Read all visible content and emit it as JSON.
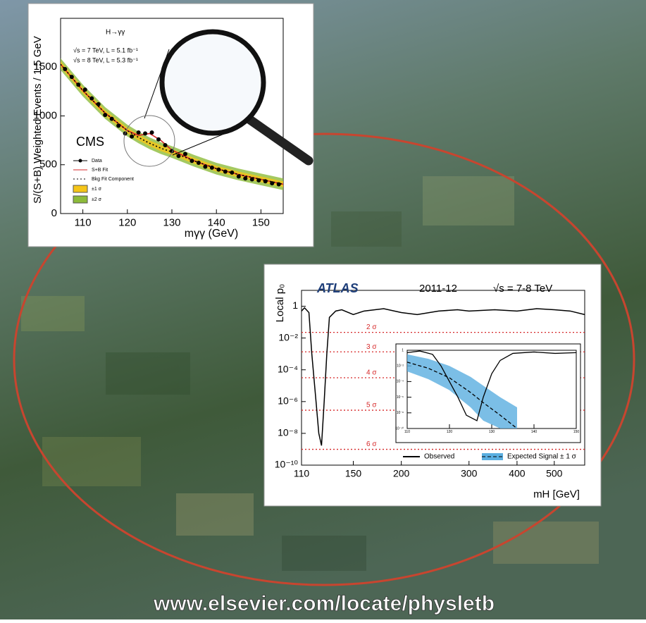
{
  "chart_data": [
    {
      "type": "scatter",
      "title": "CMS",
      "xlabel": "mγγ (GeV)",
      "ylabel": "S/(S+B) Weighted Events / 1.5 GeV",
      "annotations": [
        "H→γγ",
        "√s = 7 TeV, L = 5.1 fb⁻¹",
        "√s = 8 TeV, L = 5.3 fb⁻¹"
      ],
      "xlim": [
        105,
        155
      ],
      "xticks": [
        110,
        120,
        130,
        140,
        150
      ],
      "ylim": [
        0,
        2000
      ],
      "yticks": [
        0,
        500,
        1000,
        1500
      ],
      "series": [
        {
          "name": "Data",
          "color": "#000000",
          "x": [
            106,
            107.5,
            109,
            110.5,
            112,
            113.5,
            115,
            116.5,
            118,
            119.5,
            121,
            122.5,
            124,
            125.5,
            127,
            128.5,
            130,
            131.5,
            133,
            134.5,
            136,
            137.5,
            139,
            140.5,
            142,
            143.5,
            145,
            146.5,
            148,
            149.5,
            151,
            152.5,
            154
          ],
          "values": [
            1480,
            1400,
            1320,
            1270,
            1180,
            1120,
            1010,
            970,
            900,
            820,
            790,
            830,
            820,
            830,
            760,
            700,
            640,
            590,
            610,
            540,
            520,
            480,
            470,
            450,
            430,
            420,
            380,
            360,
            350,
            340,
            330,
            310,
            300
          ]
        },
        {
          "name": "S+B Fit",
          "color": "#d62728",
          "x": [
            105,
            110,
            115,
            120,
            122.5,
            125,
            127.5,
            130,
            135,
            140,
            145,
            150,
            155
          ],
          "values": [
            1530,
            1260,
            1030,
            850,
            800,
            820,
            750,
            650,
            540,
            460,
            400,
            350,
            300
          ]
        },
        {
          "name": "Bkg Fit Component",
          "color": "#000000",
          "style": "dotted",
          "x": [
            105,
            110,
            115,
            120,
            122.5,
            125,
            127.5,
            130,
            135,
            140,
            145,
            150,
            155
          ],
          "values": [
            1530,
            1260,
            1030,
            850,
            780,
            720,
            670,
            630,
            540,
            460,
            400,
            350,
            300
          ]
        },
        {
          "name": "±1 σ",
          "color": "#f5c518",
          "x": [
            105,
            110,
            115,
            120,
            122.5,
            125,
            127.5,
            130,
            135,
            140,
            145,
            150,
            155
          ],
          "lower": [
            1500,
            1230,
            1000,
            820,
            750,
            690,
            640,
            600,
            510,
            430,
            370,
            320,
            270
          ],
          "upper": [
            1560,
            1290,
            1060,
            880,
            810,
            750,
            700,
            660,
            570,
            490,
            430,
            380,
            330
          ]
        },
        {
          "name": "±2 σ",
          "color": "#8dbb3a",
          "x": [
            105,
            110,
            115,
            120,
            122.5,
            125,
            127.5,
            130,
            135,
            140,
            145,
            150,
            155
          ],
          "lower": [
            1470,
            1200,
            970,
            790,
            720,
            660,
            610,
            570,
            480,
            400,
            340,
            290,
            240
          ],
          "upper": [
            1590,
            1320,
            1090,
            910,
            840,
            780,
            730,
            690,
            600,
            520,
            460,
            410,
            360
          ]
        }
      ]
    },
    {
      "type": "line",
      "title": "ATLAS",
      "subtitle": "2011-12",
      "annotation": "√s = 7-8 TeV",
      "xlabel": "mH [GeV]",
      "ylabel": "Local p₀",
      "xlog": true,
      "ylog": true,
      "xlim": [
        110,
        600
      ],
      "xticks": [
        110,
        150,
        200,
        300,
        400,
        500
      ],
      "ylim": [
        1e-10,
        10
      ],
      "yticks": [
        1,
        {
          "value": 0.01,
          "label": "10⁻²"
        },
        {
          "value": 0.0001,
          "label": "10⁻⁴"
        },
        {
          "value": 1e-06,
          "label": "10⁻⁶"
        },
        {
          "value": 1e-08,
          "label": "10⁻⁸"
        },
        {
          "value": 1e-10,
          "label": "10⁻¹⁰"
        }
      ],
      "sigma_color": "#d62728",
      "sigma_lines": [
        {
          "value": 0.02275,
          "label": "2 σ"
        },
        {
          "value": 0.00135,
          "label": "3 σ"
        },
        {
          "value": 3.17e-05,
          "label": "4 σ"
        },
        {
          "value": 2.87e-07,
          "label": "5 σ"
        },
        {
          "value": 9.87e-10,
          "label": "6 σ"
        }
      ],
      "series": [
        {
          "name": "Observed",
          "color": "#000000",
          "x": [
            110,
            112,
            115,
            117,
            120,
            122,
            124,
            126,
            128,
            130,
            135,
            140,
            150,
            160,
            180,
            200,
            220,
            250,
            280,
            300,
            350,
            400,
            450,
            500,
            550,
            600
          ],
          "values": [
            0.5,
            0.8,
            0.4,
            0.001,
            1e-06,
            1e-08,
            1.7e-09,
            1e-06,
            0.001,
            0.2,
            0.5,
            0.6,
            0.3,
            0.5,
            0.7,
            0.4,
            0.3,
            0.5,
            0.6,
            0.5,
            0.6,
            0.5,
            0.7,
            0.6,
            0.5,
            0.3
          ]
        }
      ]
    },
    {
      "type": "line",
      "xlog": false,
      "ylog": true,
      "xlim": [
        110,
        150
      ],
      "xticks": [
        110,
        120,
        130,
        140,
        150
      ],
      "ylim": [
        1e-10,
        1
      ],
      "yticks": [
        1,
        {
          "value": 0.01,
          "label": "10⁻²"
        },
        {
          "value": 0.0001,
          "label": "10⁻⁴"
        },
        {
          "value": 1e-06,
          "label": "10⁻⁶"
        },
        {
          "value": 1e-08,
          "label": "10⁻⁸"
        },
        {
          "value": 1e-10,
          "label": "10⁻¹⁰"
        }
      ],
      "series": [
        {
          "color": "#000000",
          "x": [
            110,
            113,
            116,
            118,
            120,
            122,
            124,
            126.5,
            128,
            130,
            132,
            135,
            140,
            145,
            150
          ],
          "values": [
            0.5,
            0.8,
            0.3,
            0.01,
            0.0001,
            1e-06,
            5e-09,
            1e-09,
            1e-06,
            0.001,
            0.05,
            0.4,
            0.6,
            0.4,
            0.5
          ]
        },
        {
          "name": "Expected Signal ± 1 σ",
          "color": "#5aaee0",
          "style": "dashed",
          "x": [
            110,
            115,
            120,
            125,
            128,
            132,
            136
          ],
          "values": [
            0.03,
            0.005,
            0.0003,
            4e-06,
            2e-07,
            5e-09,
            1e-10
          ],
          "lower": [
            0.002,
            0.0002,
            8e-06,
            5e-08,
            1e-09,
            1e-10,
            1e-10
          ],
          "upper": [
            0.3,
            0.08,
            0.01,
            0.0004,
            3e-05,
            1e-06,
            5e-08
          ]
        }
      ]
    }
  ],
  "footer": {
    "url": "www.elsevier.com/locate/physletb"
  }
}
